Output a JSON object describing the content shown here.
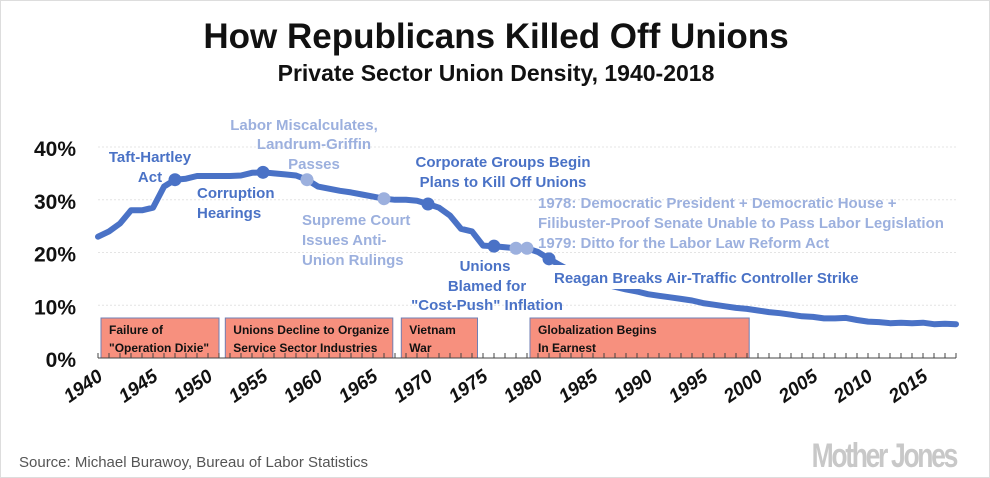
{
  "chart_data": {
    "type": "line",
    "title": "How Republicans Killed Off Unions",
    "subtitle": "Private Sector Union Density, 1940-2018",
    "xlabel": "",
    "ylabel": "",
    "xlim": [
      1940,
      2018
    ],
    "ylim": [
      0,
      40
    ],
    "y_ticks": [
      "0%",
      "10%",
      "20%",
      "30%",
      "40%"
    ],
    "x_ticks": [
      "1940",
      "1945",
      "1950",
      "1955",
      "1960",
      "1965",
      "1970",
      "1975",
      "1980",
      "1985",
      "1990",
      "1995",
      "2000",
      "2005",
      "2010",
      "2015"
    ],
    "grid": true,
    "line_color": "#4a72c6",
    "series": [
      {
        "x": [
          1940,
          1941,
          1942,
          1943,
          1944,
          1945,
          1946,
          1947,
          1948,
          1949,
          1950,
          1951,
          1952,
          1953,
          1954,
          1955,
          1956,
          1957,
          1958,
          1959,
          1960,
          1961,
          1962,
          1963,
          1964,
          1965,
          1966,
          1967,
          1968,
          1969,
          1970,
          1971,
          1972,
          1973,
          1974,
          1975,
          1976,
          1977,
          1978,
          1979,
          1980,
          1981,
          1982,
          1983,
          1984,
          1985,
          1986,
          1987,
          1988,
          1989,
          1990,
          1991,
          1992,
          1993,
          1994,
          1995,
          1996,
          1997,
          1998,
          1999,
          2000,
          2001,
          2002,
          2003,
          2004,
          2005,
          2006,
          2007,
          2008,
          2009,
          2010,
          2011,
          2012,
          2013,
          2014,
          2015,
          2016,
          2017,
          2018
        ],
        "values": [
          23,
          24,
          25.5,
          28,
          28,
          28.5,
          32.5,
          33.8,
          34,
          34.5,
          34.5,
          34.5,
          34.5,
          34.6,
          35.1,
          35.2,
          35,
          34.8,
          34.6,
          33.8,
          32.5,
          32.1,
          31.7,
          31.4,
          31,
          30.6,
          30.2,
          30,
          30,
          29.8,
          29.2,
          28.5,
          27,
          24.5,
          24,
          21.3,
          21.2,
          21,
          20.8,
          20.8,
          20.1,
          18.8,
          17.6,
          16.5,
          15.5,
          14.6,
          14,
          13.5,
          13,
          12.6,
          12.1,
          11.8,
          11.5,
          11.2,
          10.9,
          10.4,
          10.1,
          9.8,
          9.5,
          9.3,
          9.0,
          8.7,
          8.5,
          8.2,
          7.9,
          7.8,
          7.5,
          7.5,
          7.6,
          7.2,
          6.9,
          6.8,
          6.6,
          6.7,
          6.6,
          6.7,
          6.4,
          6.5,
          6.4
        ]
      }
    ],
    "markers": [
      {
        "year": 1947,
        "value": 33.8,
        "shade": "dark"
      },
      {
        "year": 1955,
        "value": 35.2,
        "shade": "dark"
      },
      {
        "year": 1959,
        "value": 33.8,
        "shade": "light"
      },
      {
        "year": 1966,
        "value": 30.2,
        "shade": "light"
      },
      {
        "year": 1970,
        "value": 29.2,
        "shade": "dark"
      },
      {
        "year": 1976,
        "value": 21.2,
        "shade": "dark"
      },
      {
        "year": 1978,
        "value": 20.8,
        "shade": "light"
      },
      {
        "year": 1979,
        "value": 20.8,
        "shade": "light"
      },
      {
        "year": 1981,
        "value": 18.8,
        "shade": "dark"
      }
    ],
    "periods": [
      {
        "start": 1940,
        "end": 1951,
        "lines": [
          "Failure of",
          "\"Operation Dixie\""
        ]
      },
      {
        "start": 1951.3,
        "end": 1966.8,
        "lines": [
          "Unions Decline to Organize",
          "Service Sector Industries"
        ]
      },
      {
        "start": 1967.3,
        "end": 1974.5,
        "lines": [
          "Vietnam",
          "War"
        ]
      },
      {
        "start": 1979,
        "end": 1999.2,
        "lines": [
          "Globalization Begins",
          "In Earnest"
        ]
      }
    ],
    "period_color": "#f7907e",
    "annotations": {
      "taft": [
        "Taft-Hartley",
        "Act"
      ],
      "corruption": [
        "Corruption",
        "Hearings"
      ],
      "landrum": [
        "Labor Miscalculates,",
        "Landrum-Griffin",
        "Passes"
      ],
      "supreme": [
        "Supreme Court",
        "Issues Anti-",
        "Union Rulings"
      ],
      "corporate": [
        "Corporate Groups Begin",
        "Plans to Kill Off Unions"
      ],
      "carter": [
        "1978: Democratic President + Democratic House +",
        "Filibuster-Proof  Senate Unable to Pass Labor Legislation",
        "1979: Ditto for the Labor Law Reform Act"
      ],
      "costpush": [
        "Unions",
        "Blamed for",
        "\"Cost-Push\" Inflation"
      ],
      "reagan": [
        "Reagan Breaks Air-Traffic  Controller Strike"
      ]
    },
    "colors": {
      "dark": "#4a72c6",
      "light": "#9cb0de"
    }
  },
  "source": "Source: Michael Burawoy, Bureau of Labor Statistics",
  "logo": "Mother Jones"
}
